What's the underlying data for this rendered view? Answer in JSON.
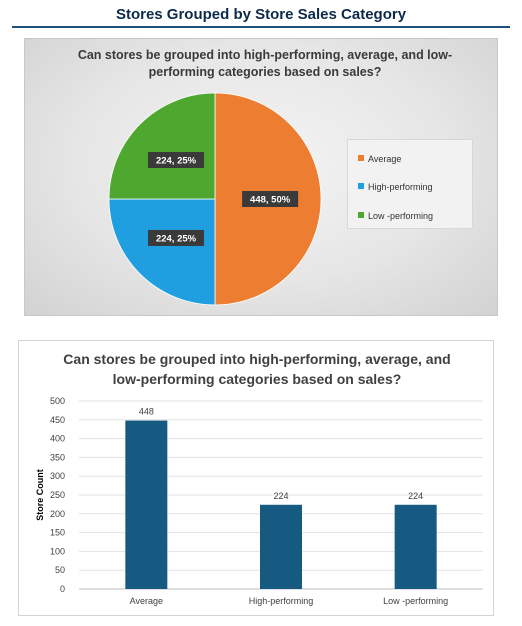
{
  "page": {
    "title": "Stores Grouped by Store Sales Category"
  },
  "colors": {
    "average": "#ed7d31",
    "high": "#1f9fe0",
    "low": "#4ea72e",
    "bar": "#165a82",
    "title_rule": "#1f4e79"
  },
  "chart_data": [
    {
      "type": "pie",
      "title": "Can stores be grouped into high-performing, average, and low-performing categories based on sales?",
      "title_lines": [
        "Can stores be grouped into high-performing, average, and low-",
        "performing categories based on sales?"
      ],
      "categories": [
        "Average",
        "High-performing",
        "Low-performing"
      ],
      "legend_labels": [
        "Average",
        "High-performing",
        "Low -performing"
      ],
      "values": [
        448,
        224,
        224
      ],
      "data_labels": [
        "448, 50%",
        "224, 25%",
        "224, 25%"
      ],
      "legend_position": "right"
    },
    {
      "type": "bar",
      "title": "Can stores be grouped into high-performing, average, and low-performing categories based on sales?",
      "title_lines": [
        "Can stores be grouped into high-performing, average, and",
        "low-performing categories based on sales?"
      ],
      "categories": [
        "Average",
        "High-performing",
        "Low-performing"
      ],
      "category_labels": [
        "Average",
        "High-performing",
        "Low -performing"
      ],
      "values": [
        448,
        224,
        224
      ],
      "data_labels": [
        "448",
        "224",
        "224"
      ],
      "ylabel": "Store Count",
      "xlabel": "",
      "ylim": [
        0,
        500
      ],
      "yticks": [
        0,
        50,
        100,
        150,
        200,
        250,
        300,
        350,
        400,
        450,
        500
      ],
      "grid": true
    }
  ]
}
